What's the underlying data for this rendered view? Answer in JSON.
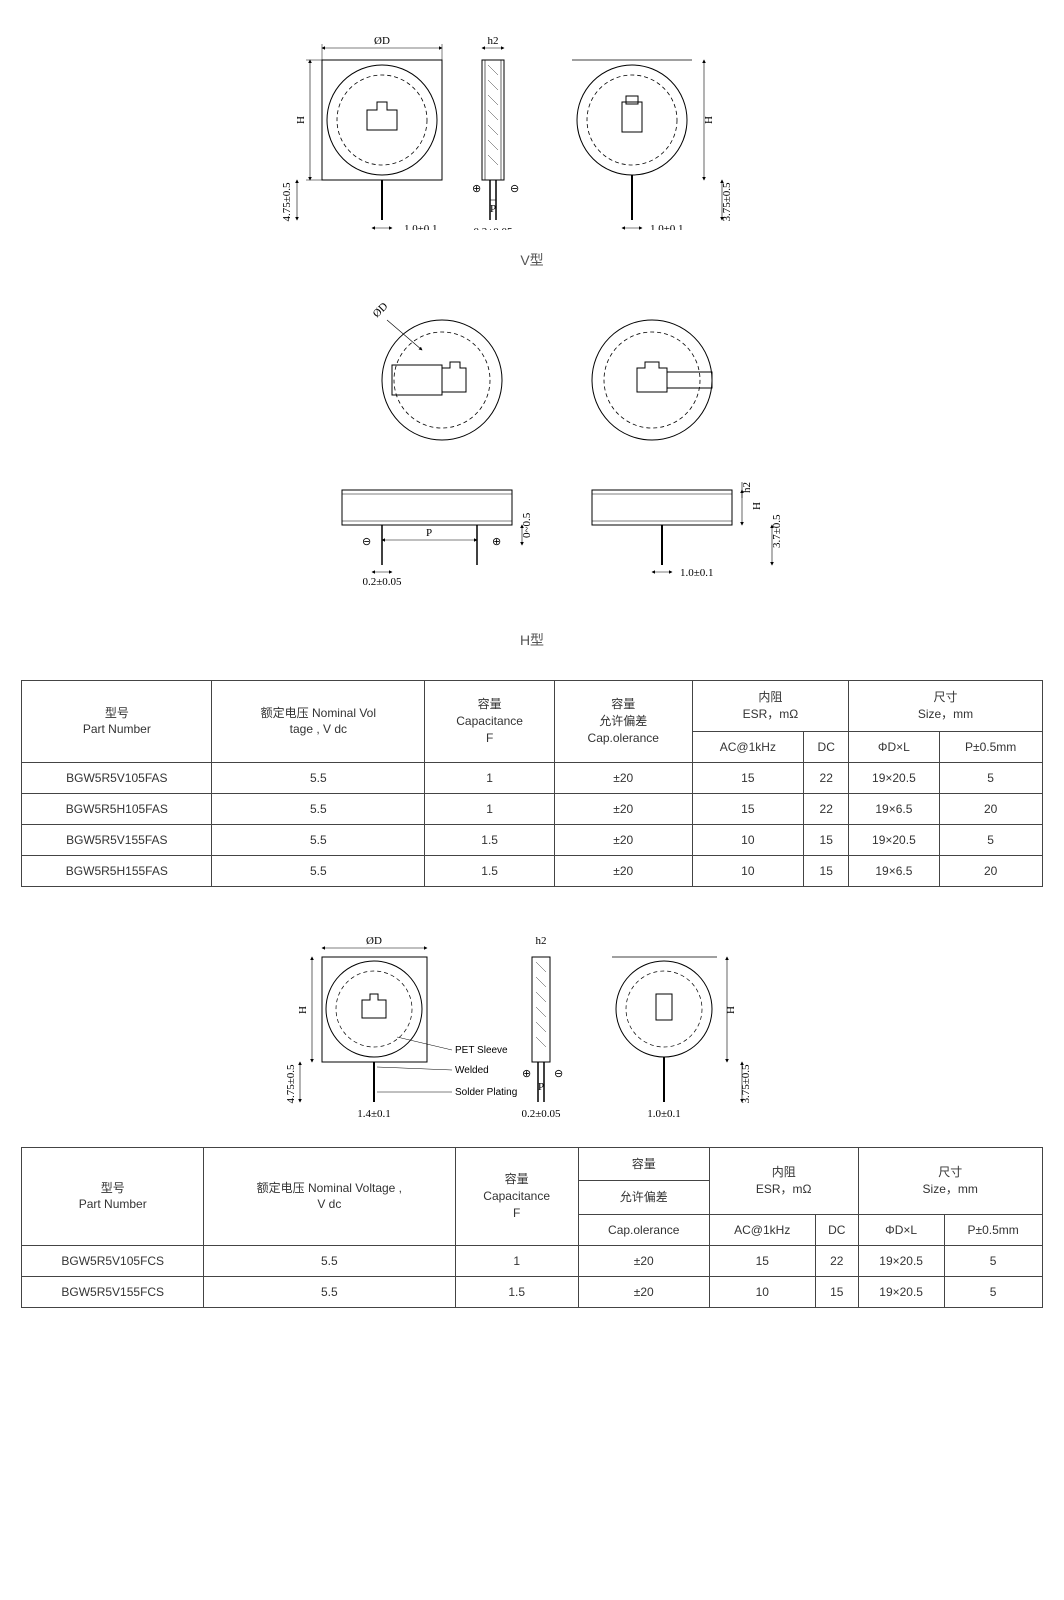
{
  "labels": {
    "vtype": "V型",
    "htype": "H型",
    "phiD": "ØD",
    "h2": "h2",
    "H": "H",
    "P": "P",
    "dim1": "1.0±0.1",
    "dim2": "0.2±0.05",
    "dim3": "4.75±0.5",
    "dim4": "3.75±0.5",
    "dim5": "3.7±0.5",
    "dim6": "0~0.5",
    "dim7": "1.4±0.1",
    "plus": "⊕",
    "minus": "⊖",
    "petSleeve": "PET Sleeve",
    "welded": "Welded",
    "solderPlating": "Solder Plating"
  },
  "table1": {
    "headers": {
      "partNo_cn": "型号",
      "partNo_en": "Part Number",
      "voltage_cn": "额定电压 Nominal Vol",
      "voltage_en": "tage , V dc",
      "cap_cn": "容量",
      "cap_en1": "Capacitance",
      "cap_en2": "F",
      "tol_cn": "容量",
      "tol_cn2": "允许偏差",
      "tol_en": "Cap.olerance",
      "esr_cn": "内阻",
      "esr_en": "ESR，mΩ",
      "esr_ac": "AC@1kHz",
      "esr_dc": "DC",
      "size_cn": "尺寸",
      "size_en": "Size，mm",
      "size_dl": "ΦD×L",
      "size_p": "P±0.5mm"
    },
    "rows": [
      {
        "pn": "BGW5R5V105FAS",
        "v": "5.5",
        "c": "1",
        "tol": "±20",
        "ac": "15",
        "dc": "22",
        "dl": "19×20.5",
        "p": "5"
      },
      {
        "pn": "BGW5R5H105FAS",
        "v": "5.5",
        "c": "1",
        "tol": "±20",
        "ac": "15",
        "dc": "22",
        "dl": "19×6.5",
        "p": "20"
      },
      {
        "pn": "BGW5R5V155FAS",
        "v": "5.5",
        "c": "1.5",
        "tol": "±20",
        "ac": "10",
        "dc": "15",
        "dl": "19×20.5",
        "p": "5"
      },
      {
        "pn": "BGW5R5H155FAS",
        "v": "5.5",
        "c": "1.5",
        "tol": "±20",
        "ac": "10",
        "dc": "15",
        "dl": "19×6.5",
        "p": "20"
      }
    ]
  },
  "table2": {
    "headers": {
      "partNo_cn": "型号",
      "partNo_en": "Part Number",
      "voltage_cn": "额定电压 Nominal Voltage ,",
      "voltage_en": "V dc",
      "cap_cn": "容量",
      "cap_en1": "Capacitance",
      "cap_en2": "F",
      "tol_cn": "容量",
      "tol_cn2": "允许偏差",
      "tol_en": "Cap.olerance",
      "esr_cn": "内阻",
      "esr_en": "ESR，mΩ",
      "esr_ac": "AC@1kHz",
      "esr_dc": "DC",
      "size_cn": "尺寸",
      "size_en": "Size，mm",
      "size_dl": "ΦD×L",
      "size_p": "P±0.5mm"
    },
    "rows": [
      {
        "pn": "BGW5R5V105FCS",
        "v": "5.5",
        "c": "1",
        "tol": "±20",
        "ac": "15",
        "dc": "22",
        "dl": "19×20.5",
        "p": "5"
      },
      {
        "pn": "BGW5R5V155FCS",
        "v": "5.5",
        "c": "1.5",
        "tol": "±20",
        "ac": "10",
        "dc": "15",
        "dl": "19×20.5",
        "p": "5"
      }
    ]
  },
  "style": {
    "stroke": "#000000",
    "stroke_thin": 0.8,
    "stroke_med": 1.2,
    "dash": "4,3",
    "bg": "#ffffff"
  }
}
